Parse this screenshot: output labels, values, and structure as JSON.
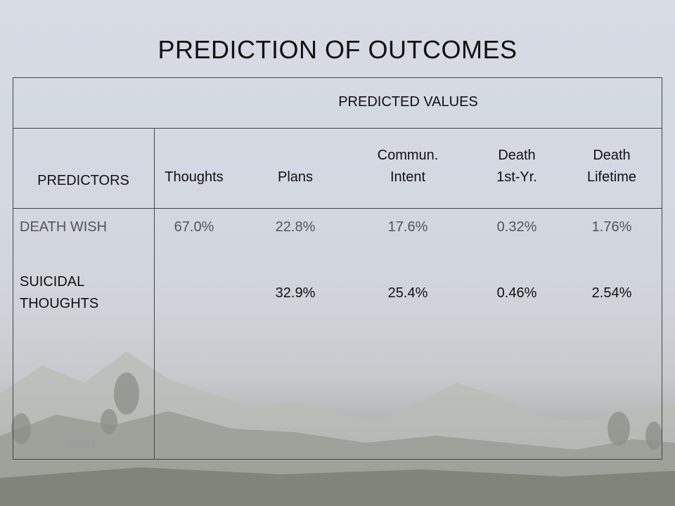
{
  "slide": {
    "title": "PREDICTION OF OUTCOMES",
    "table": {
      "group_header": "PREDICTED VALUES",
      "predictors_header": "PREDICTORS",
      "columns": [
        {
          "line1": "",
          "line2": "Thoughts"
        },
        {
          "line1": "",
          "line2": "Plans"
        },
        {
          "line1": "Commun.",
          "line2": "Intent"
        },
        {
          "line1": "Death",
          "line2": "1st-Yr."
        },
        {
          "line1": "Death",
          "line2": "Lifetime"
        }
      ],
      "rows": [
        {
          "label_line1": "DEATH WISH",
          "label_line2": "",
          "values": [
            "67.0%",
            "22.8%",
            "17.6%",
            "0.32%",
            "1.76%"
          ]
        },
        {
          "label_line1": "SUICIDAL",
          "label_line2": "THOUGHTS",
          "values": [
            "",
            "32.9%",
            "25.4%",
            "0.46%",
            "2.54%"
          ]
        }
      ]
    }
  }
}
